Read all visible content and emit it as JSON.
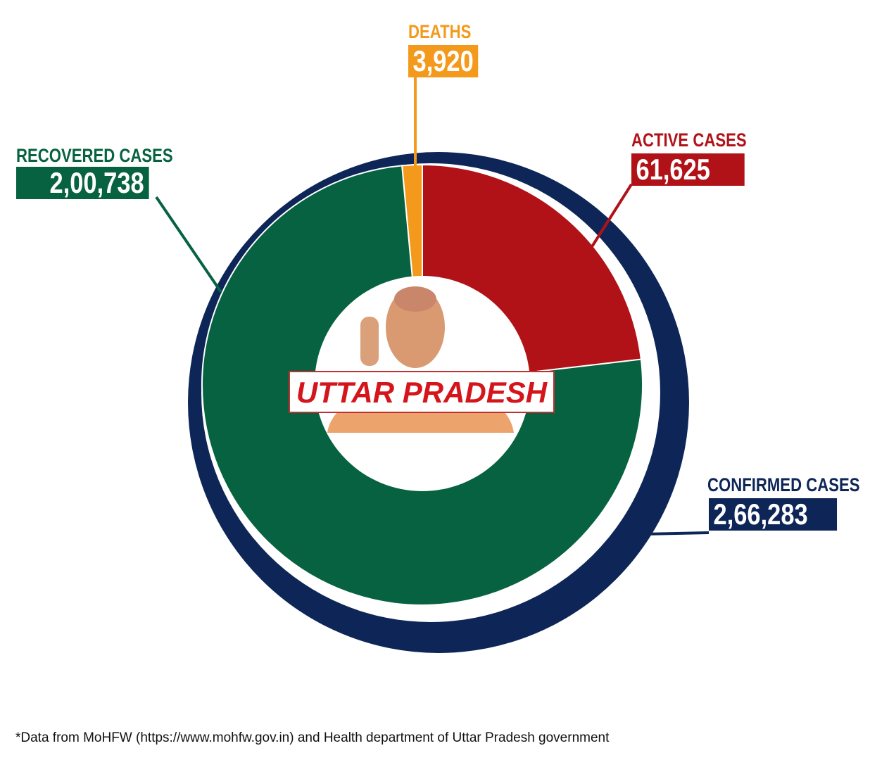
{
  "chart_data": {
    "type": "pie",
    "title": "UTTAR PRADESH",
    "total": {
      "label": "CONFIRMED CASES",
      "value": 266283,
      "display": "2,66,283"
    },
    "slices": [
      {
        "label": "DEATHS",
        "value": 3920,
        "display": "3,920",
        "color": "#f39a1d"
      },
      {
        "label": "ACTIVE CASES",
        "value": 61625,
        "display": "61,625",
        "color": "#b11218"
      },
      {
        "label": "RECOVERED CASES",
        "value": 200738,
        "display": "2,00,738",
        "color": "#066240"
      }
    ],
    "ring_color": "#0e2657"
  },
  "footnote": "*Data from MoHFW (https://www.mohfw.gov.in) and Health department of Uttar Pradesh government"
}
